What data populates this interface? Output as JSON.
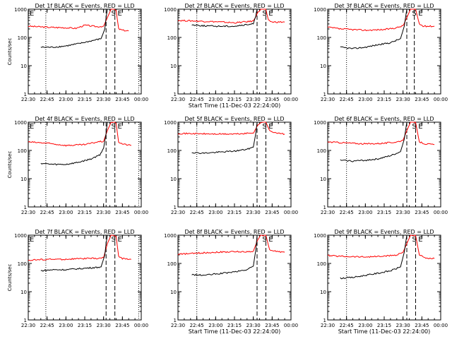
{
  "chart_data": [
    {
      "type": "line",
      "title": "Det 1f BLACK = Events, RED = LLD",
      "ylabel": "Counts/sec",
      "xlabel": "",
      "x_ticks": [
        "22:30",
        "22:45",
        "23:00",
        "23:15",
        "23:30",
        "23:45",
        "00:00"
      ],
      "y_scale": "log",
      "ylim": [
        1,
        1000
      ],
      "y_ticks": [
        "1",
        "10",
        "100",
        "1000"
      ],
      "markers": [
        {
          "label": "E",
          "at": "22:30"
        },
        {
          "label": "S",
          "at": "23:35"
        },
        {
          "label": "E",
          "at": "23:40"
        }
      ],
      "lines": {
        "dotted": [
          "22:44",
          "23:58"
        ],
        "dashed": [
          "23:32",
          "23:39"
        ]
      },
      "series": [
        {
          "color": "#ff0000",
          "x": [
            "22:30",
            "22:45",
            "23:00",
            "23:08",
            "23:15",
            "23:25",
            "23:30",
            "23:33",
            "23:36",
            "23:38",
            "23:40",
            "23:42",
            "23:45",
            "23:50"
          ],
          "y": [
            250,
            230,
            220,
            210,
            270,
            240,
            250,
            500,
            1000,
            1000,
            900,
            200,
            180,
            170
          ]
        },
        {
          "color": "#000000",
          "x": [
            "22:40",
            "22:50",
            "23:00",
            "23:10",
            "23:20",
            "23:28",
            "23:31",
            "23:32",
            "23:33"
          ],
          "y": [
            45,
            45,
            50,
            60,
            75,
            90,
            200,
            500,
            1000
          ]
        }
      ]
    },
    {
      "type": "line",
      "title": "Det 2f BLACK = Events, RED = LLD",
      "ylabel": "",
      "xlabel": "Start Time (11-Dec-03 22:24:00)",
      "x_ticks": [
        "22:30",
        "22:45",
        "23:00",
        "23:15",
        "23:30",
        "23:45",
        "00:00"
      ],
      "y_scale": "log",
      "ylim": [
        1,
        1000
      ],
      "y_ticks": [
        "1",
        "10",
        "100",
        "1000"
      ],
      "markers": [
        {
          "label": "S",
          "at": "23:36"
        },
        {
          "label": "E",
          "at": "23:41"
        }
      ],
      "lines": {
        "dotted": [
          "22:45"
        ],
        "dashed": [
          "23:33",
          "23:40"
        ]
      },
      "series": [
        {
          "color": "#ff0000",
          "x": [
            "22:30",
            "22:45",
            "23:00",
            "23:15",
            "23:25",
            "23:30",
            "23:33",
            "23:36",
            "23:40",
            "23:42",
            "23:45",
            "23:55"
          ],
          "y": [
            400,
            380,
            360,
            330,
            360,
            380,
            700,
            1000,
            1000,
            400,
            350,
            350
          ]
        },
        {
          "color": "#000000",
          "x": [
            "22:41",
            "22:50",
            "23:00",
            "23:15",
            "23:25",
            "23:30",
            "23:32",
            "23:33"
          ],
          "y": [
            280,
            260,
            250,
            250,
            280,
            300,
            600,
            1000
          ]
        }
      ]
    },
    {
      "type": "line",
      "title": "Det 3f BLACK = Events, RED = LLD",
      "ylabel": "",
      "xlabel": "",
      "x_ticks": [
        "22:30",
        "22:45",
        "23:00",
        "23:15",
        "23:30",
        "23:45",
        "00:00"
      ],
      "y_scale": "log",
      "ylim": [
        1,
        1000
      ],
      "y_ticks": [
        "1",
        "10",
        "100",
        "1000"
      ],
      "markers": [
        {
          "label": "S",
          "at": "23:36"
        },
        {
          "label": "E",
          "at": "23:41"
        }
      ],
      "lines": {
        "dotted": [
          "22:45"
        ],
        "dashed": [
          "23:33",
          "23:39"
        ]
      },
      "series": [
        {
          "color": "#ff0000",
          "x": [
            "22:30",
            "22:40",
            "23:00",
            "23:15",
            "23:25",
            "23:30",
            "23:33",
            "23:36",
            "23:40",
            "23:43",
            "23:46",
            "23:55"
          ],
          "y": [
            230,
            200,
            180,
            190,
            220,
            260,
            500,
            1000,
            1000,
            300,
            250,
            250
          ]
        },
        {
          "color": "#000000",
          "x": [
            "22:40",
            "22:50",
            "23:00",
            "23:10",
            "23:20",
            "23:28",
            "23:31",
            "23:33"
          ],
          "y": [
            45,
            40,
            45,
            55,
            65,
            90,
            250,
            1000
          ]
        }
      ]
    },
    {
      "type": "line",
      "title": "Det 4f BLACK = Events, RED = LLD",
      "ylabel": "Counts/sec",
      "xlabel": "",
      "x_ticks": [
        "22:30",
        "22:45",
        "23:00",
        "23:15",
        "23:30",
        "23:45",
        "00:00"
      ],
      "y_scale": "log",
      "ylim": [
        1,
        1000
      ],
      "y_ticks": [
        "1",
        "10",
        "100",
        "1000"
      ],
      "markers": [
        {
          "label": "E",
          "at": "22:30"
        },
        {
          "label": "S",
          "at": "23:35"
        },
        {
          "label": "E",
          "at": "23:40"
        }
      ],
      "lines": {
        "dotted": [
          "22:44",
          "23:58"
        ],
        "dashed": [
          "23:32",
          "23:39"
        ]
      },
      "series": [
        {
          "color": "#ff0000",
          "x": [
            "22:30",
            "22:45",
            "23:00",
            "23:15",
            "23:25",
            "23:30",
            "23:33",
            "23:36",
            "23:38",
            "23:40",
            "23:42",
            "23:45",
            "23:52"
          ],
          "y": [
            200,
            180,
            150,
            160,
            200,
            210,
            500,
            1000,
            1000,
            900,
            200,
            170,
            150
          ]
        },
        {
          "color": "#000000",
          "x": [
            "22:40",
            "22:50",
            "23:00",
            "23:10",
            "23:20",
            "23:27",
            "23:30",
            "23:32",
            "23:33"
          ],
          "y": [
            35,
            32,
            32,
            38,
            50,
            70,
            120,
            400,
            1000
          ]
        }
      ]
    },
    {
      "type": "line",
      "title": "Det 5f BLACK = Events, RED = LLD",
      "ylabel": "",
      "xlabel": "",
      "x_ticks": [
        "22:30",
        "22:45",
        "23:00",
        "23:15",
        "23:30",
        "23:45",
        "00:00"
      ],
      "y_scale": "log",
      "ylim": [
        1,
        1000
      ],
      "y_ticks": [
        "1",
        "10",
        "100",
        "1000"
      ],
      "markers": [
        {
          "label": "S",
          "at": "23:36"
        },
        {
          "label": "E",
          "at": "23:41"
        }
      ],
      "lines": {
        "dotted": [
          "22:45"
        ],
        "dashed": [
          "23:33",
          "23:40"
        ]
      },
      "series": [
        {
          "color": "#ff0000",
          "x": [
            "22:30",
            "22:45",
            "23:00",
            "23:15",
            "23:25",
            "23:30",
            "23:33",
            "23:36",
            "23:40",
            "23:43",
            "23:50",
            "23:55"
          ],
          "y": [
            400,
            390,
            380,
            380,
            400,
            420,
            700,
            1000,
            1000,
            500,
            400,
            380
          ]
        },
        {
          "color": "#000000",
          "x": [
            "22:41",
            "22:50",
            "23:00",
            "23:15",
            "23:25",
            "23:30",
            "23:32",
            "23:33"
          ],
          "y": [
            85,
            80,
            85,
            95,
            110,
            130,
            400,
            1000
          ]
        }
      ]
    },
    {
      "type": "line",
      "title": "Det 6f BLACK = Events, RED = LLD",
      "ylabel": "",
      "xlabel": "",
      "x_ticks": [
        "22:30",
        "22:45",
        "23:00",
        "23:15",
        "23:30",
        "23:45",
        "00:00"
      ],
      "y_scale": "log",
      "ylim": [
        1,
        1000
      ],
      "y_ticks": [
        "1",
        "10",
        "100",
        "1000"
      ],
      "markers": [
        {
          "label": "S",
          "at": "23:36"
        },
        {
          "label": "E",
          "at": "23:41"
        }
      ],
      "lines": {
        "dotted": [
          "22:45"
        ],
        "dashed": [
          "23:33",
          "23:40"
        ]
      },
      "series": [
        {
          "color": "#ff0000",
          "x": [
            "22:30",
            "22:40",
            "23:00",
            "23:15",
            "23:25",
            "23:30",
            "23:33",
            "23:36",
            "23:40",
            "23:43",
            "23:48",
            "23:55"
          ],
          "y": [
            200,
            190,
            170,
            180,
            200,
            230,
            500,
            1000,
            1000,
            200,
            170,
            160
          ]
        },
        {
          "color": "#000000",
          "x": [
            "22:40",
            "22:50",
            "23:00",
            "23:10",
            "23:20",
            "23:28",
            "23:31",
            "23:33"
          ],
          "y": [
            45,
            42,
            45,
            50,
            65,
            90,
            250,
            1000
          ]
        }
      ]
    },
    {
      "type": "line",
      "title": "Det 7f BLACK = Events, RED = LLD",
      "ylabel": "Counts/sec",
      "xlabel": "",
      "x_ticks": [
        "22:30",
        "22:45",
        "23:00",
        "23:15",
        "23:30",
        "23:45",
        "00:00"
      ],
      "y_scale": "log",
      "ylim": [
        1,
        1000
      ],
      "y_ticks": [
        "1",
        "10",
        "100",
        "1000"
      ],
      "markers": [
        {
          "label": "E",
          "at": "22:30"
        },
        {
          "label": "S",
          "at": "23:35"
        },
        {
          "label": "E",
          "at": "23:40"
        }
      ],
      "lines": {
        "dotted": [
          "22:44",
          "23:58"
        ],
        "dashed": [
          "23:32",
          "23:39"
        ]
      },
      "series": [
        {
          "color": "#ff0000",
          "x": [
            "22:30",
            "22:45",
            "23:00",
            "23:15",
            "23:25",
            "23:30",
            "23:33",
            "23:36",
            "23:38",
            "23:40",
            "23:42",
            "23:45",
            "23:52"
          ],
          "y": [
            130,
            140,
            140,
            150,
            150,
            160,
            500,
            1000,
            1000,
            900,
            180,
            150,
            140
          ]
        },
        {
          "color": "#000000",
          "x": [
            "22:40",
            "22:50",
            "23:00",
            "23:10",
            "23:20",
            "23:28",
            "23:31",
            "23:32",
            "23:33"
          ],
          "y": [
            55,
            60,
            60,
            65,
            70,
            75,
            200,
            500,
            1000
          ]
        }
      ]
    },
    {
      "type": "line",
      "title": "Det 8f BLACK = Events, RED = LLD",
      "ylabel": "",
      "xlabel": "Start Time (11-Dec-03 22:24:00)",
      "x_ticks": [
        "22:30",
        "22:45",
        "23:00",
        "23:15",
        "23:30",
        "23:45",
        "00:00"
      ],
      "y_scale": "log",
      "ylim": [
        1,
        1000
      ],
      "y_ticks": [
        "1",
        "10",
        "100",
        "1000"
      ],
      "markers": [
        {
          "label": "S",
          "at": "23:36"
        },
        {
          "label": "E",
          "at": "23:41"
        }
      ],
      "lines": {
        "dotted": [
          "22:45"
        ],
        "dashed": [
          "23:33",
          "23:40"
        ]
      },
      "series": [
        {
          "color": "#ff0000",
          "x": [
            "22:30",
            "22:45",
            "23:00",
            "23:15",
            "23:25",
            "23:30",
            "23:33",
            "23:36",
            "23:40",
            "23:43",
            "23:50",
            "23:55"
          ],
          "y": [
            210,
            230,
            250,
            260,
            260,
            270,
            600,
            1000,
            1000,
            300,
            260,
            250
          ]
        },
        {
          "color": "#000000",
          "x": [
            "22:41",
            "22:50",
            "23:00",
            "23:15",
            "23:25",
            "23:30",
            "23:32",
            "23:33"
          ],
          "y": [
            40,
            38,
            42,
            50,
            60,
            80,
            300,
            1000
          ]
        }
      ]
    },
    {
      "type": "line",
      "title": "Det 9f BLACK = Events, RED = LLD",
      "ylabel": "",
      "xlabel": "Start Time (11-Dec-03 22:24:00)",
      "x_ticks": [
        "22:30",
        "22:45",
        "23:00",
        "23:15",
        "23:30",
        "23:45",
        "00:00"
      ],
      "y_scale": "log",
      "ylim": [
        1,
        1000
      ],
      "y_ticks": [
        "1",
        "10",
        "100",
        "1000"
      ],
      "markers": [
        {
          "label": "S",
          "at": "23:36"
        },
        {
          "label": "E",
          "at": "23:41"
        }
      ],
      "lines": {
        "dotted": [
          "22:45"
        ],
        "dashed": [
          "23:33",
          "23:40"
        ]
      },
      "series": [
        {
          "color": "#ff0000",
          "x": [
            "22:30",
            "22:40",
            "23:00",
            "23:15",
            "23:25",
            "23:30",
            "23:33",
            "23:36",
            "23:40",
            "23:43",
            "23:48",
            "23:55"
          ],
          "y": [
            190,
            180,
            170,
            180,
            200,
            250,
            500,
            1000,
            1000,
            200,
            150,
            150
          ]
        },
        {
          "color": "#000000",
          "x": [
            "22:40",
            "22:50",
            "23:00",
            "23:10",
            "23:20",
            "23:28",
            "23:31",
            "23:33"
          ],
          "y": [
            30,
            32,
            38,
            45,
            55,
            75,
            250,
            1000
          ]
        }
      ]
    }
  ]
}
